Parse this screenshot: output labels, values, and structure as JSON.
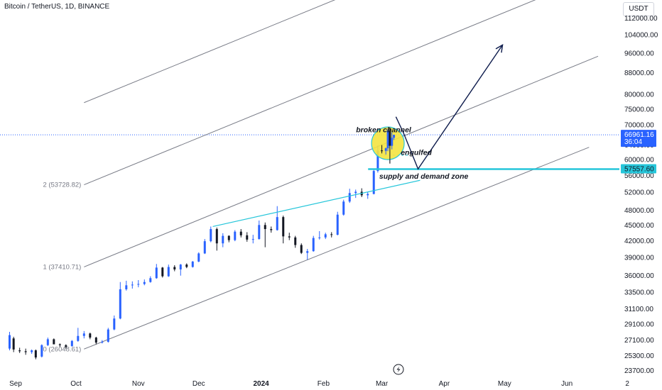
{
  "header": {
    "symbol_title": "Bitcoin / TetherUS, 1D, BINANCE",
    "currency_button": "USDT"
  },
  "colors": {
    "up_candle": "#2962ff",
    "down_candle": "#131722",
    "channel_line": "#787b86",
    "trend_line": "#26c6da",
    "zone_line": "#26c6da",
    "highlight_circle": "#f4e340",
    "projection_arrow": "#0d1b4c",
    "current_price_bg": "#2962ff",
    "zone_price_bg": "#26c6da"
  },
  "chart_data": {
    "type": "candlestick",
    "title": "Bitcoin / TetherUS, 1D, BINANCE",
    "y_scale": "log",
    "ylim": [
      22900,
      122000
    ],
    "y_ticks": [
      112000,
      104000,
      96000,
      88000,
      80000,
      75000,
      70000,
      64000,
      60000,
      56000,
      52000,
      48000,
      45000,
      42000,
      39000,
      36000,
      33500,
      31100,
      29100,
      27100,
      25300,
      23700
    ],
    "y_tick_labels": [
      "112000.00",
      "104000.00",
      "96000.00",
      "88000.00",
      "80000.00",
      "75000.00",
      "70000.00",
      "64000.00",
      "60000.00",
      "56000.00",
      "52000.00",
      "48000.00",
      "45000.00",
      "42000.00",
      "39000.00",
      "36000.00",
      "33500.00",
      "31100.00",
      "29100.00",
      "27100.00",
      "25300.00",
      "23700.00"
    ],
    "x_ticks": [
      {
        "date": "2023-09-01",
        "label": "Sep",
        "bold": false
      },
      {
        "date": "2023-10-01",
        "label": "Oct",
        "bold": false
      },
      {
        "date": "2023-11-01",
        "label": "Nov",
        "bold": false
      },
      {
        "date": "2023-12-01",
        "label": "Dec",
        "bold": false
      },
      {
        "date": "2024-01-01",
        "label": "2024",
        "bold": true
      },
      {
        "date": "2024-02-01",
        "label": "Feb",
        "bold": false
      },
      {
        "date": "2024-03-01",
        "label": "Mar",
        "bold": false
      },
      {
        "date": "2024-04-01",
        "label": "Apr",
        "bold": false
      },
      {
        "date": "2024-05-01",
        "label": "May",
        "bold": false
      },
      {
        "date": "2024-06-01",
        "label": "Jun",
        "bold": false
      },
      {
        "date": "2024-07-01",
        "label": "2",
        "bold": false
      }
    ],
    "candles": [
      {
        "date": "2023-08-29",
        "o": 26100,
        "h": 28100,
        "l": 25900,
        "c": 27700
      },
      {
        "date": "2023-08-31",
        "o": 27300,
        "h": 27500,
        "l": 25700,
        "c": 26000
      },
      {
        "date": "2023-09-03",
        "o": 25900,
        "h": 26200,
        "l": 25600,
        "c": 25800
      },
      {
        "date": "2023-09-06",
        "o": 25800,
        "h": 26100,
        "l": 25400,
        "c": 25700
      },
      {
        "date": "2023-09-09",
        "o": 25700,
        "h": 26000,
        "l": 25500,
        "c": 25900
      },
      {
        "date": "2023-09-11",
        "o": 25900,
        "h": 26000,
        "l": 24900,
        "c": 25100
      },
      {
        "date": "2023-09-14",
        "o": 25200,
        "h": 26600,
        "l": 25100,
        "c": 26500
      },
      {
        "date": "2023-09-17",
        "o": 26500,
        "h": 27400,
        "l": 26400,
        "c": 27200
      },
      {
        "date": "2023-09-20",
        "o": 27200,
        "h": 27300,
        "l": 26600,
        "c": 26600
      },
      {
        "date": "2023-09-23",
        "o": 26600,
        "h": 26700,
        "l": 26300,
        "c": 26500
      },
      {
        "date": "2023-09-26",
        "o": 26500,
        "h": 26600,
        "l": 26100,
        "c": 26300
      },
      {
        "date": "2023-09-29",
        "o": 26400,
        "h": 27100,
        "l": 26300,
        "c": 27000
      },
      {
        "date": "2023-10-02",
        "o": 27000,
        "h": 28600,
        "l": 26900,
        "c": 27600
      },
      {
        "date": "2023-10-05",
        "o": 27600,
        "h": 28200,
        "l": 27300,
        "c": 27900
      },
      {
        "date": "2023-10-08",
        "o": 27900,
        "h": 28000,
        "l": 27200,
        "c": 27400
      },
      {
        "date": "2023-10-11",
        "o": 27400,
        "h": 27500,
        "l": 26600,
        "c": 26800
      },
      {
        "date": "2023-10-14",
        "o": 26800,
        "h": 27100,
        "l": 26700,
        "c": 26900
      },
      {
        "date": "2023-10-17",
        "o": 26900,
        "h": 28600,
        "l": 26800,
        "c": 28400
      },
      {
        "date": "2023-10-20",
        "o": 28400,
        "h": 30200,
        "l": 28300,
        "c": 29800
      },
      {
        "date": "2023-10-23",
        "o": 29800,
        "h": 35000,
        "l": 29700,
        "c": 33900
      },
      {
        "date": "2023-10-26",
        "o": 33900,
        "h": 35200,
        "l": 33700,
        "c": 34500
      },
      {
        "date": "2023-10-29",
        "o": 34500,
        "h": 35100,
        "l": 34000,
        "c": 34600
      },
      {
        "date": "2023-11-01",
        "o": 34600,
        "h": 35300,
        "l": 34200,
        "c": 34700
      },
      {
        "date": "2023-11-04",
        "o": 34700,
        "h": 35400,
        "l": 34500,
        "c": 35000
      },
      {
        "date": "2023-11-07",
        "o": 35000,
        "h": 35900,
        "l": 34900,
        "c": 35600
      },
      {
        "date": "2023-11-10",
        "o": 35600,
        "h": 37900,
        "l": 35500,
        "c": 37300
      },
      {
        "date": "2023-11-13",
        "o": 37300,
        "h": 37400,
        "l": 35700,
        "c": 35900
      },
      {
        "date": "2023-11-16",
        "o": 35900,
        "h": 37800,
        "l": 35800,
        "c": 37400
      },
      {
        "date": "2023-11-19",
        "o": 37400,
        "h": 37700,
        "l": 36700,
        "c": 37000
      },
      {
        "date": "2023-11-22",
        "o": 37000,
        "h": 37900,
        "l": 36000,
        "c": 37800
      },
      {
        "date": "2023-11-25",
        "o": 37800,
        "h": 38000,
        "l": 37200,
        "c": 37400
      },
      {
        "date": "2023-11-28",
        "o": 37400,
        "h": 38400,
        "l": 37300,
        "c": 38300
      },
      {
        "date": "2023-12-01",
        "o": 38300,
        "h": 39900,
        "l": 38200,
        "c": 39700
      },
      {
        "date": "2023-12-04",
        "o": 39700,
        "h": 42300,
        "l": 39600,
        "c": 41900
      },
      {
        "date": "2023-12-07",
        "o": 41900,
        "h": 44700,
        "l": 41700,
        "c": 44200
      },
      {
        "date": "2023-12-10",
        "o": 44200,
        "h": 44500,
        "l": 40200,
        "c": 41500
      },
      {
        "date": "2023-12-13",
        "o": 41500,
        "h": 43400,
        "l": 40800,
        "c": 42900
      },
      {
        "date": "2023-12-16",
        "o": 42900,
        "h": 43000,
        "l": 41700,
        "c": 42100
      },
      {
        "date": "2023-12-19",
        "o": 42100,
        "h": 44000,
        "l": 41900,
        "c": 43700
      },
      {
        "date": "2023-12-22",
        "o": 43700,
        "h": 44200,
        "l": 42600,
        "c": 43000
      },
      {
        "date": "2023-12-25",
        "o": 43000,
        "h": 43600,
        "l": 41800,
        "c": 42200
      },
      {
        "date": "2023-12-28",
        "o": 42200,
        "h": 43100,
        "l": 41500,
        "c": 42300
      },
      {
        "date": "2023-12-31",
        "o": 42300,
        "h": 45900,
        "l": 42200,
        "c": 45000
      },
      {
        "date": "2024-01-03",
        "o": 45000,
        "h": 45500,
        "l": 40800,
        "c": 44200
      },
      {
        "date": "2024-01-06",
        "o": 44200,
        "h": 44700,
        "l": 43500,
        "c": 44000
      },
      {
        "date": "2024-01-09",
        "o": 44000,
        "h": 48900,
        "l": 43900,
        "c": 46600
      },
      {
        "date": "2024-01-12",
        "o": 46600,
        "h": 46900,
        "l": 41500,
        "c": 42800
      },
      {
        "date": "2024-01-15",
        "o": 42800,
        "h": 43500,
        "l": 42100,
        "c": 42600
      },
      {
        "date": "2024-01-18",
        "o": 42600,
        "h": 42900,
        "l": 40700,
        "c": 41200
      },
      {
        "date": "2024-01-21",
        "o": 41200,
        "h": 41500,
        "l": 39600,
        "c": 39800
      },
      {
        "date": "2024-01-24",
        "o": 39800,
        "h": 40500,
        "l": 38600,
        "c": 40100
      },
      {
        "date": "2024-01-27",
        "o": 40100,
        "h": 42900,
        "l": 40000,
        "c": 42500
      },
      {
        "date": "2024-01-30",
        "o": 42500,
        "h": 43800,
        "l": 42200,
        "c": 42600
      },
      {
        "date": "2024-02-02",
        "o": 42600,
        "h": 43500,
        "l": 42300,
        "c": 43200
      },
      {
        "date": "2024-02-05",
        "o": 43200,
        "h": 43600,
        "l": 42600,
        "c": 43100
      },
      {
        "date": "2024-02-08",
        "o": 43100,
        "h": 47700,
        "l": 43000,
        "c": 47100
      },
      {
        "date": "2024-02-11",
        "o": 47100,
        "h": 50300,
        "l": 46900,
        "c": 49900
      },
      {
        "date": "2024-02-14",
        "o": 49900,
        "h": 52800,
        "l": 49600,
        "c": 51800
      },
      {
        "date": "2024-02-17",
        "o": 51800,
        "h": 52600,
        "l": 50700,
        "c": 52100
      },
      {
        "date": "2024-02-20",
        "o": 52100,
        "h": 52900,
        "l": 50900,
        "c": 51300
      },
      {
        "date": "2024-02-23",
        "o": 51300,
        "h": 52000,
        "l": 50500,
        "c": 51600
      },
      {
        "date": "2024-02-26",
        "o": 51600,
        "h": 57600,
        "l": 51500,
        "c": 57100
      },
      {
        "date": "2024-02-28",
        "o": 57100,
        "h": 63900,
        "l": 56700,
        "c": 62500
      },
      {
        "date": "2024-03-01",
        "o": 62500,
        "h": 64000,
        "l": 61700,
        "c": 62400
      },
      {
        "date": "2024-03-03",
        "o": 62400,
        "h": 63300,
        "l": 61400,
        "c": 63100
      },
      {
        "date": "2024-03-04",
        "o": 63100,
        "h": 68800,
        "l": 62300,
        "c": 68300
      },
      {
        "date": "2024-03-05",
        "o": 68300,
        "h": 69200,
        "l": 59000,
        "c": 63800
      },
      {
        "date": "2024-03-06",
        "o": 63800,
        "h": 67700,
        "l": 62800,
        "c": 66100
      },
      {
        "date": "2024-03-07",
        "o": 66100,
        "h": 67000,
        "l": 65500,
        "c": 66961
      }
    ],
    "current_price": {
      "label": "66961.16",
      "sub_label": "36:04",
      "value": 66961.16
    },
    "zone_price": {
      "label": "57557.60",
      "value": 57557.6
    },
    "fib_channel": {
      "levels": [
        {
          "label": "0 (26048.61)",
          "price": 26048.61
        },
        {
          "label": "1 (37410.71)",
          "price": 37410.71
        },
        {
          "label": "2 (53728.82)",
          "price": 53728.82
        }
      ]
    },
    "annotations": [
      {
        "text": "broken channel"
      },
      {
        "text": "engulfed"
      },
      {
        "text": "supply and demand zone"
      }
    ]
  }
}
